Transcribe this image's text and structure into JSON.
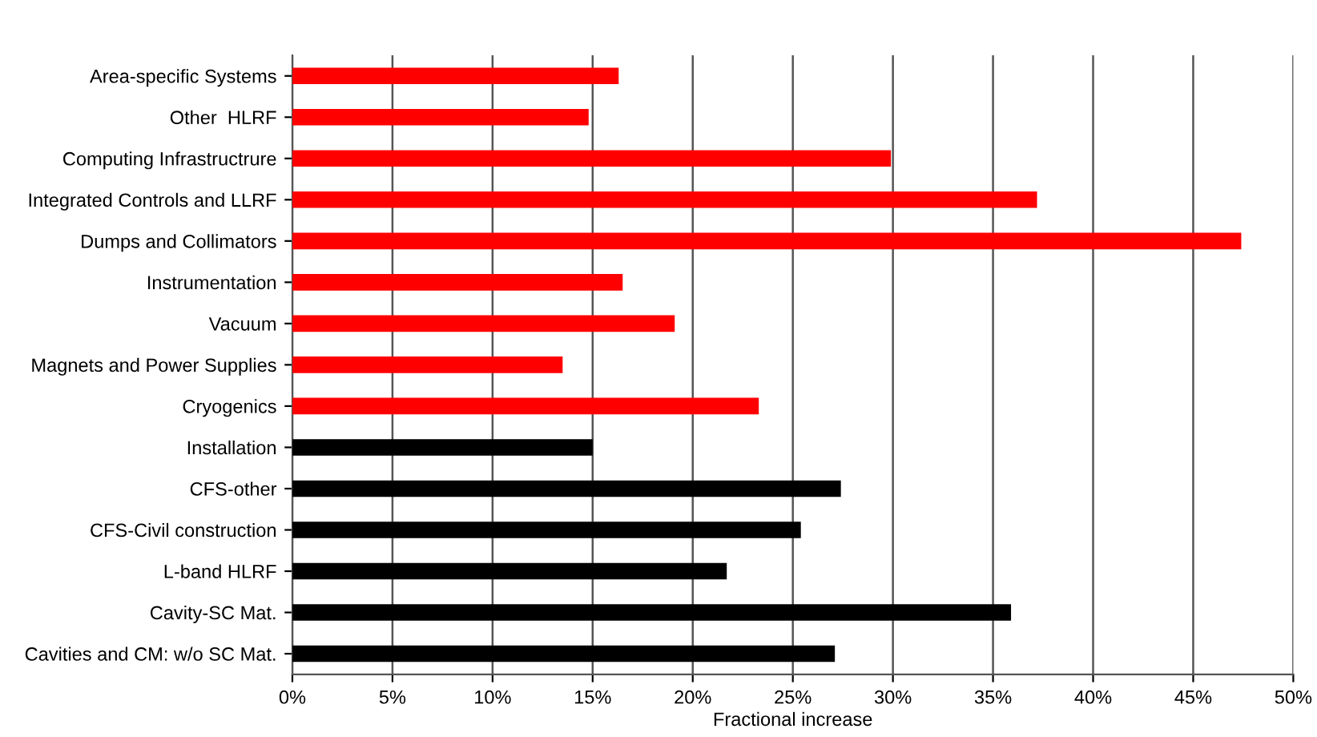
{
  "chart_data": {
    "type": "bar",
    "orientation": "horizontal",
    "xlabel": "Fractional increase",
    "categories": [
      "Area-specific Systems",
      "Other  HLRF",
      "Computing Infrastructrure",
      "Integrated Controls and LLRF",
      "Dumps and Collimators",
      "Instrumentation",
      "Vacuum",
      "Magnets and Power Supplies",
      "Cryogenics",
      "Installation",
      "CFS-other",
      "CFS-Civil construction",
      "L-band HLRF",
      "Cavity-SC Mat.",
      "Cavities and CM: w/o SC Mat."
    ],
    "values": [
      16.3,
      14.8,
      29.9,
      37.2,
      47.4,
      16.5,
      19.1,
      13.5,
      23.3,
      15.0,
      27.4,
      25.4,
      21.7,
      35.9,
      27.1
    ],
    "colors": [
      "#ff0000",
      "#ff0000",
      "#ff0000",
      "#ff0000",
      "#ff0000",
      "#ff0000",
      "#ff0000",
      "#ff0000",
      "#ff0000",
      "#000000",
      "#000000",
      "#000000",
      "#000000",
      "#000000",
      "#000000"
    ],
    "xlim": [
      0,
      50
    ],
    "xticks": [
      {
        "value": 0,
        "label": "0%"
      },
      {
        "value": 5,
        "label": "5%"
      },
      {
        "value": 10,
        "label": "10%"
      },
      {
        "value": 15,
        "label": "15%"
      },
      {
        "value": 20,
        "label": "20%"
      },
      {
        "value": 25,
        "label": "25%"
      },
      {
        "value": 30,
        "label": "30%"
      },
      {
        "value": 35,
        "label": "35%"
      },
      {
        "value": 40,
        "label": "40%"
      },
      {
        "value": 45,
        "label": "45%"
      },
      {
        "value": 50,
        "label": "50%"
      }
    ],
    "grid": "x",
    "legend": false
  }
}
